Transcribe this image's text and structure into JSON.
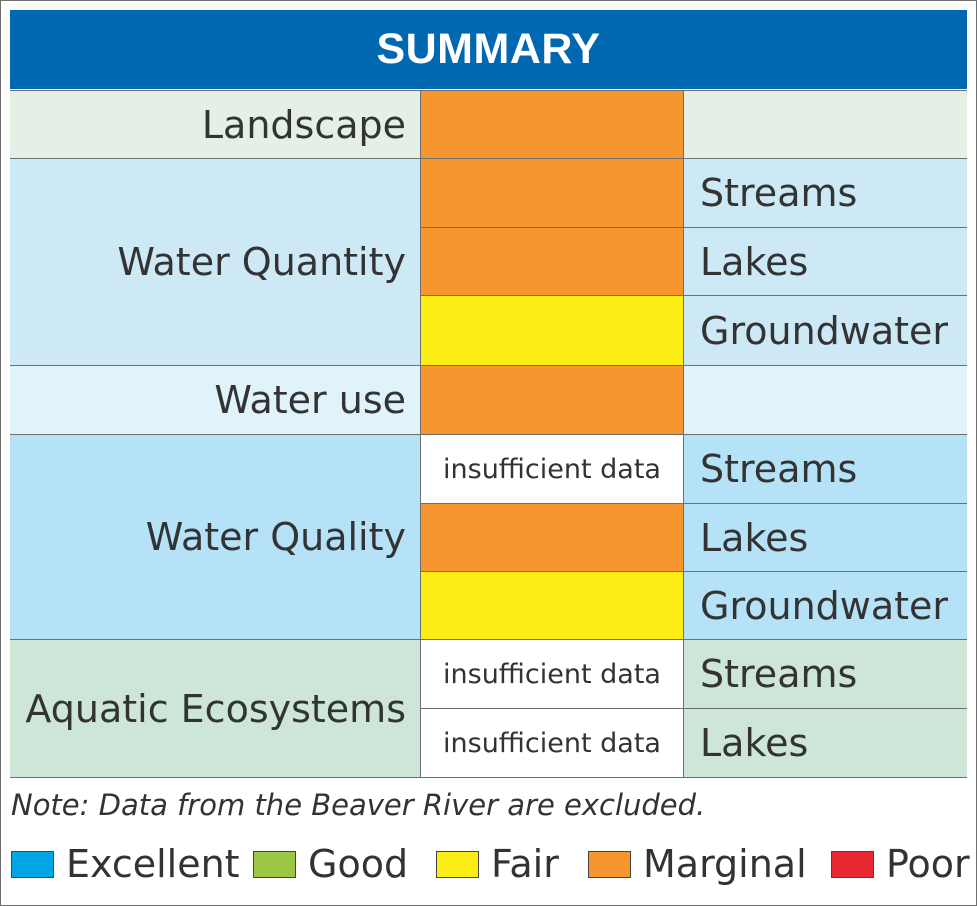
{
  "title": "SUMMARY",
  "colors": {
    "excellent": "#00a5e6",
    "good": "#9cc744",
    "fair": "#fcee15",
    "marginal": "#f7952f",
    "poor": "#e72831",
    "header": "#0067b1"
  },
  "rows": {
    "landscape": {
      "label": "Landscape",
      "rating": "marginal"
    },
    "water_quantity": {
      "label": "Water Quantity",
      "items": [
        {
          "sub": "Streams",
          "rating": "marginal"
        },
        {
          "sub": "Lakes",
          "rating": "marginal"
        },
        {
          "sub": "Groundwater",
          "rating": "fair"
        }
      ]
    },
    "water_use": {
      "label": "Water use",
      "rating": "marginal"
    },
    "water_quality": {
      "label": "Water Quality",
      "items": [
        {
          "sub": "Streams",
          "rating": "insufficient",
          "text": "insufficient data"
        },
        {
          "sub": "Lakes",
          "rating": "marginal"
        },
        {
          "sub": "Groundwater",
          "rating": "fair"
        }
      ]
    },
    "aquatic": {
      "label": "Aquatic Ecosystems",
      "items": [
        {
          "sub": "Streams",
          "rating": "insufficient",
          "text": "insufficient data"
        },
        {
          "sub": "Lakes",
          "rating": "insufficient",
          "text": "insufficient data"
        }
      ]
    }
  },
  "note": "Note: Data from the Beaver River are excluded.",
  "legend": [
    {
      "label": "Excellent",
      "color": "#00a5e6"
    },
    {
      "label": "Good",
      "color": "#9cc744"
    },
    {
      "label": "Fair",
      "color": "#fcee15"
    },
    {
      "label": "Marginal",
      "color": "#f7952f"
    },
    {
      "label": "Poor",
      "color": "#e72831"
    }
  ]
}
